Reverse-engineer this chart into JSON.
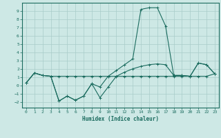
{
  "xlabel": "Humidex (Indice chaleur)",
  "bg_color": "#cde8e5",
  "grid_color": "#a8ccc9",
  "line_color": "#1a6b5e",
  "xlim": [
    -0.5,
    23.5
  ],
  "ylim": [
    -2.7,
    10.0
  ],
  "yticks": [
    -2,
    -1,
    0,
    1,
    2,
    3,
    4,
    5,
    6,
    7,
    8,
    9
  ],
  "xticks": [
    0,
    1,
    2,
    3,
    4,
    5,
    6,
    7,
    8,
    9,
    10,
    11,
    12,
    13,
    14,
    15,
    16,
    17,
    18,
    19,
    20,
    21,
    22,
    23
  ],
  "line1_x": [
    0,
    1,
    2,
    3,
    4,
    5,
    6,
    7,
    8,
    9,
    10,
    11,
    12,
    13,
    14,
    15,
    16,
    17,
    18,
    19,
    20,
    21,
    22,
    23
  ],
  "line1_y": [
    0.3,
    1.5,
    1.2,
    1.1,
    1.1,
    1.1,
    1.1,
    1.1,
    1.1,
    1.1,
    1.1,
    1.1,
    1.1,
    1.1,
    1.1,
    1.1,
    1.1,
    1.1,
    1.1,
    1.1,
    1.1,
    1.1,
    1.1,
    1.4
  ],
  "line2_x": [
    0,
    1,
    2,
    3,
    4,
    5,
    6,
    7,
    8,
    9,
    10,
    11,
    12,
    13,
    14,
    15,
    16,
    17,
    18,
    19,
    20,
    21,
    22,
    23
  ],
  "line2_y": [
    0.3,
    1.5,
    1.2,
    1.1,
    -1.9,
    -1.3,
    -1.8,
    -1.3,
    0.2,
    -0.2,
    1.1,
    1.8,
    2.5,
    3.2,
    9.2,
    9.4,
    9.4,
    7.2,
    1.2,
    1.2,
    1.1,
    2.7,
    2.5,
    1.4
  ],
  "line3_x": [
    0,
    1,
    2,
    3,
    4,
    5,
    6,
    7,
    8,
    9,
    10,
    11,
    12,
    13,
    14,
    15,
    16,
    17,
    18,
    19,
    20,
    21,
    22,
    23
  ],
  "line3_y": [
    0.3,
    1.5,
    1.2,
    1.1,
    -1.9,
    -1.3,
    -1.8,
    -1.3,
    0.2,
    -1.5,
    -0.2,
    1.1,
    1.6,
    2.0,
    2.3,
    2.5,
    2.6,
    2.5,
    1.2,
    1.2,
    1.1,
    2.7,
    2.5,
    1.4
  ]
}
